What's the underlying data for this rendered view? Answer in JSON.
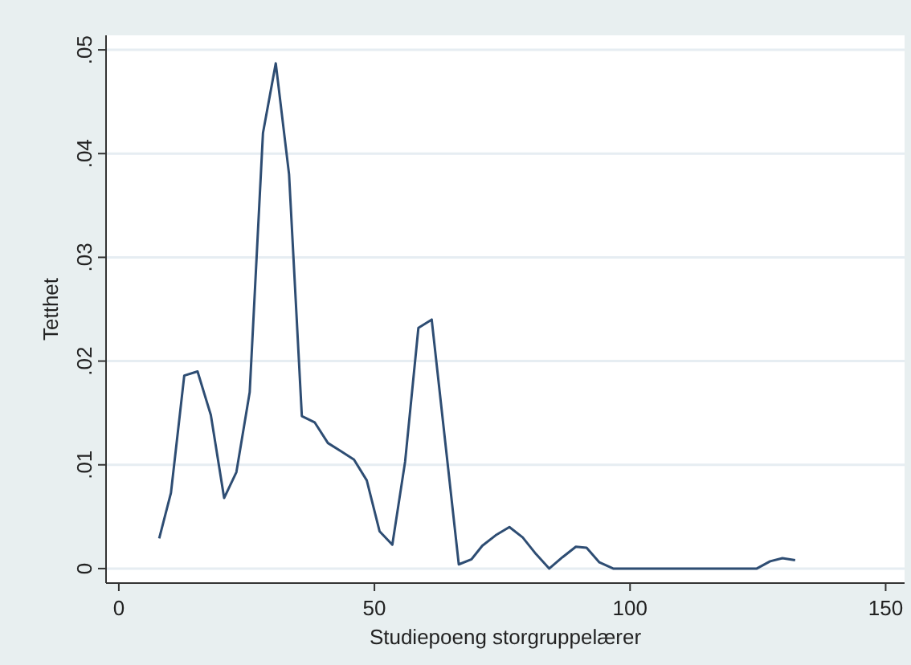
{
  "chart_data": {
    "type": "line",
    "xlabel": "Studiepoeng storgruppelærer",
    "ylabel": "Tetthet",
    "x": [
      7.9,
      10.2,
      12.8,
      15.4,
      18,
      20.6,
      23,
      25.6,
      28.2,
      30.7,
      33.3,
      35.8,
      38.3,
      40.9,
      43.5,
      46,
      48.5,
      51,
      53.5,
      56,
      58.6,
      61.2,
      66.5,
      69,
      71.1,
      73.7,
      76.4,
      79,
      81.6,
      84.2,
      86.8,
      89.4,
      91.5,
      94,
      96.7,
      99.3,
      101.8,
      104.4,
      107,
      109.5,
      112.1,
      114.7,
      117.2,
      119.8,
      122.3,
      124.8,
      127.4,
      129.8,
      132.3
    ],
    "series": [
      {
        "color": "#2e4d73",
        "values": [
          0.0029,
          0.0073,
          0.0186,
          0.019,
          0.0148,
          0.0068,
          0.0093,
          0.017,
          0.042,
          0.0487,
          0.038,
          0.0147,
          0.0141,
          0.0121,
          0.0113,
          0.0105,
          0.0085,
          0.0036,
          0.0023,
          0.0103,
          0.0232,
          0.024,
          0.0004,
          0.0009,
          0.0022,
          0.0032,
          0.004,
          0.003,
          0.0014,
          0,
          0.0011,
          0.0021,
          0.002,
          0.0006,
          0,
          0,
          0,
          0,
          0,
          0,
          0,
          0,
          0,
          0,
          0,
          0,
          0.0007,
          0.001,
          0.0008
        ]
      }
    ],
    "xlim": [
      -2.5,
      153.7
    ],
    "xticks": [
      0,
      50,
      100,
      150
    ],
    "ylim": [
      -0.0014,
      0.0514
    ],
    "yticks": [
      {
        "value": 0,
        "label": "0"
      },
      {
        "value": 0.01,
        "label": ".01"
      },
      {
        "value": 0.02,
        "label": ".02"
      },
      {
        "value": 0.03,
        "label": ".03"
      },
      {
        "value": 0.04,
        "label": ".04"
      },
      {
        "value": 0.05,
        "label": ".05"
      }
    ],
    "grid": "y",
    "line_style": "solid",
    "marker": "none"
  }
}
